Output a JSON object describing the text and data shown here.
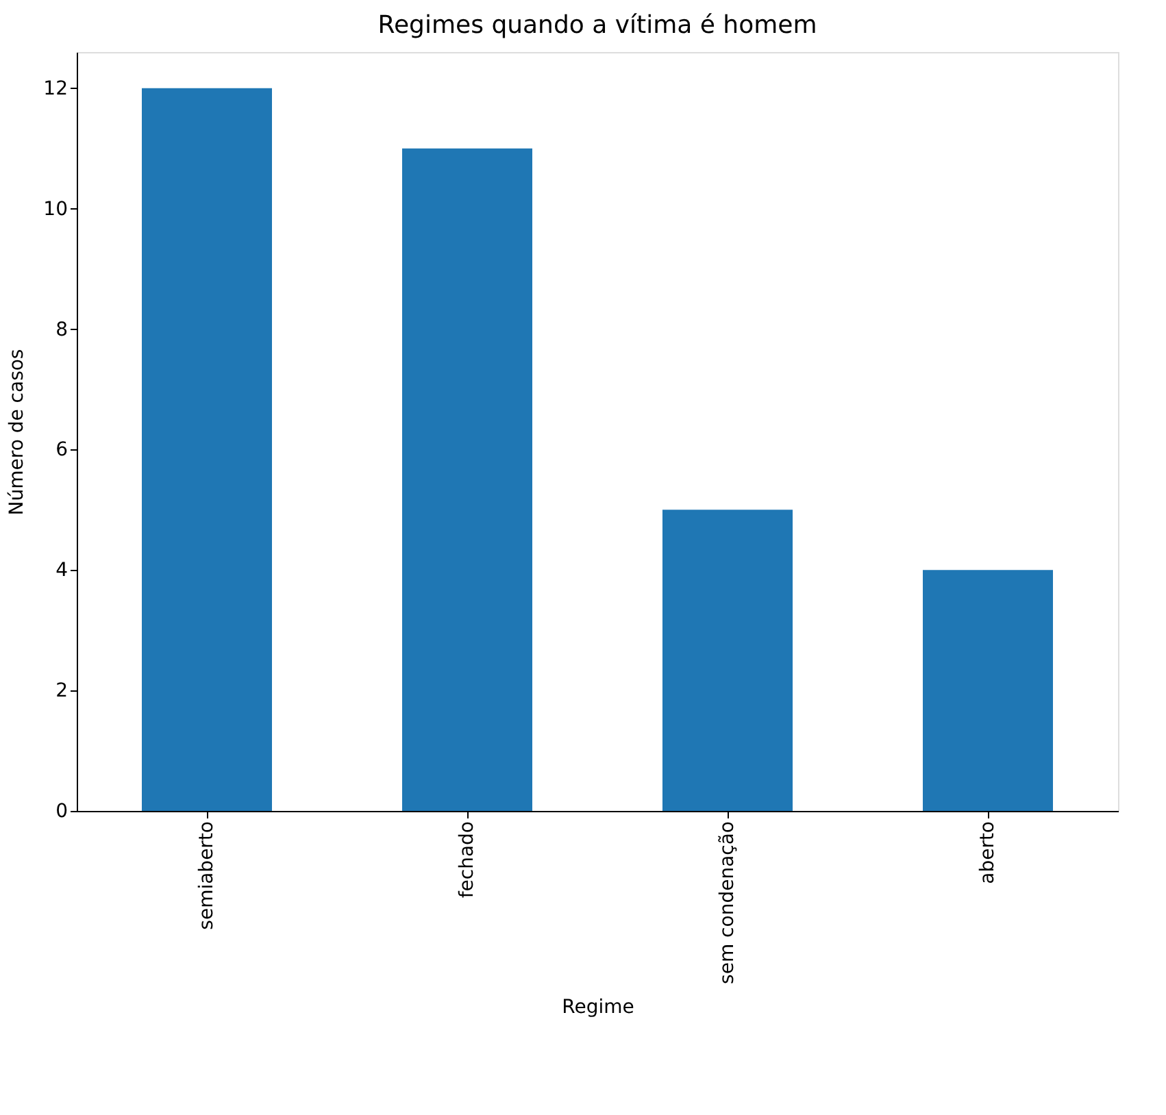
{
  "chart_data": {
    "type": "bar",
    "title": "Regimes quando a vítima é homem",
    "xlabel": "Regime",
    "ylabel": "Número de casos",
    "categories": [
      "semiaberto",
      "fechado",
      "sem condenação",
      "aberto"
    ],
    "values": [
      12,
      11,
      5,
      4
    ],
    "color": "#1f77b4",
    "ylim": [
      0,
      12.6
    ],
    "yticks": [
      0,
      2,
      4,
      6,
      8,
      10,
      12
    ],
    "grid": false
  }
}
